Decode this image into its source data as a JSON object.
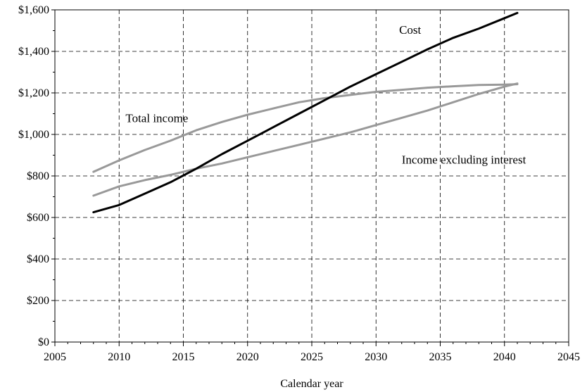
{
  "chart_data": {
    "type": "line",
    "xlabel": "Calendar year",
    "ylabel": "",
    "xlim": [
      2005,
      2045
    ],
    "ylim": [
      0,
      1600
    ],
    "x_ticks": [
      2005,
      2010,
      2015,
      2020,
      2025,
      2030,
      2035,
      2040,
      2045
    ],
    "x_tick_labels": [
      "2005",
      "2010",
      "2015",
      "2020",
      "2025",
      "2030",
      "2035",
      "2040",
      "2045"
    ],
    "y_ticks": [
      0,
      200,
      400,
      600,
      800,
      1000,
      1200,
      1400,
      1600
    ],
    "y_tick_labels": [
      "$0",
      "$200",
      "$400",
      "$600",
      "$800",
      "$1,000",
      "$1,200",
      "$1,400",
      "$1,600"
    ],
    "grid": true,
    "series": [
      {
        "name": "Cost",
        "color": "#000000",
        "x": [
          2008,
          2010,
          2012,
          2014,
          2016,
          2018,
          2020,
          2022,
          2024,
          2026,
          2028,
          2030,
          2032,
          2034,
          2036,
          2038,
          2040,
          2041
        ],
        "values": [
          625,
          660,
          715,
          770,
          835,
          905,
          970,
          1035,
          1100,
          1165,
          1230,
          1290,
          1350,
          1410,
          1465,
          1510,
          1560,
          1585
        ]
      },
      {
        "name": "Total income",
        "color": "#999999",
        "x": [
          2008,
          2010,
          2012,
          2014,
          2016,
          2018,
          2020,
          2022,
          2024,
          2026,
          2028,
          2030,
          2032,
          2034,
          2036,
          2038,
          2040,
          2041
        ],
        "values": [
          820,
          875,
          925,
          970,
          1020,
          1060,
          1095,
          1125,
          1155,
          1175,
          1190,
          1205,
          1215,
          1225,
          1232,
          1238,
          1240,
          1242
        ]
      },
      {
        "name": "Income excluding interest",
        "color": "#999999",
        "x": [
          2008,
          2010,
          2012,
          2014,
          2016,
          2018,
          2020,
          2022,
          2024,
          2026,
          2028,
          2030,
          2032,
          2034,
          2036,
          2038,
          2040,
          2041
        ],
        "values": [
          705,
          750,
          780,
          805,
          835,
          860,
          890,
          920,
          950,
          980,
          1010,
          1045,
          1080,
          1115,
          1155,
          1195,
          1230,
          1245
        ]
      }
    ],
    "annotations": [
      {
        "text": "Cost",
        "x": 2031.8,
        "y": 1485
      },
      {
        "text": "Total income",
        "x": 2010.5,
        "y": 1060
      },
      {
        "text": "Income excluding interest",
        "x": 2032.0,
        "y": 860
      }
    ]
  }
}
